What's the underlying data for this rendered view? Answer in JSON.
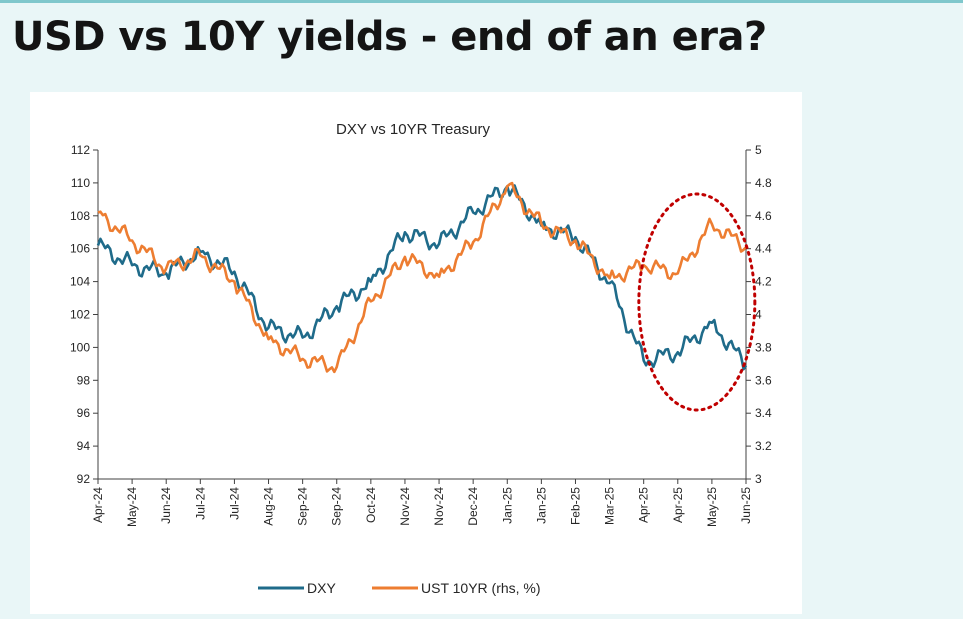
{
  "page": {
    "title": "USD vs 10Y yields - end of an era?"
  },
  "colors": {
    "dxy": "#1f6b8a",
    "ust": "#ed7d31",
    "highlight": "#c00000",
    "axis": "#404040",
    "background": "#e9f6f7"
  },
  "chart_data": {
    "type": "line",
    "title": "DXY vs 10YR Treasury",
    "x": [
      "Apr-24",
      "May-24",
      "Jun-24",
      "Jul-24",
      "Jul-24",
      "Aug-24",
      "Sep-24",
      "Sep-24",
      "Oct-24",
      "Nov-24",
      "Nov-24",
      "Dec-24",
      "Jan-25",
      "Jan-25",
      "Feb-25",
      "Mar-25",
      "Apr-25",
      "Apr-25",
      "May-25",
      "Jun-25"
    ],
    "y_left": {
      "label": "DXY",
      "ylim": [
        92,
        112
      ],
      "ticks": [
        92,
        94,
        96,
        98,
        100,
        102,
        104,
        106,
        108,
        110,
        112
      ]
    },
    "y_right": {
      "label": "UST 10YR (rhs, %)",
      "ylim": [
        3,
        5
      ],
      "ticks": [
        "3",
        "3.2",
        "3.4",
        "3.6",
        "3.8",
        "4",
        "4.2",
        "4.4",
        "4.6",
        "4.8",
        "5"
      ]
    },
    "series": [
      {
        "name": "DXY",
        "axis": "left",
        "values": [
          106.2,
          105.0,
          104.5,
          105.8,
          104.6,
          101.2,
          100.6,
          102.5,
          104.0,
          107.0,
          106.3,
          108.2,
          109.8,
          107.4,
          106.7,
          103.9,
          99.2,
          99.7,
          101.5,
          98.9
        ]
      },
      {
        "name": "UST 10YR (rhs, %)",
        "axis": "right",
        "values": [
          4.62,
          4.45,
          4.28,
          4.36,
          4.2,
          3.85,
          3.73,
          3.68,
          4.08,
          4.35,
          4.23,
          4.44,
          4.78,
          4.55,
          4.45,
          4.22,
          4.3,
          4.25,
          4.55,
          4.41
        ]
      }
    ],
    "legend": {
      "position": "bottom",
      "entries": [
        "DXY",
        "UST 10YR (rhs, %)"
      ]
    },
    "annotation": "dotted ellipse highlighting Apr-25 to Jun-25 divergence",
    "grid": false
  }
}
